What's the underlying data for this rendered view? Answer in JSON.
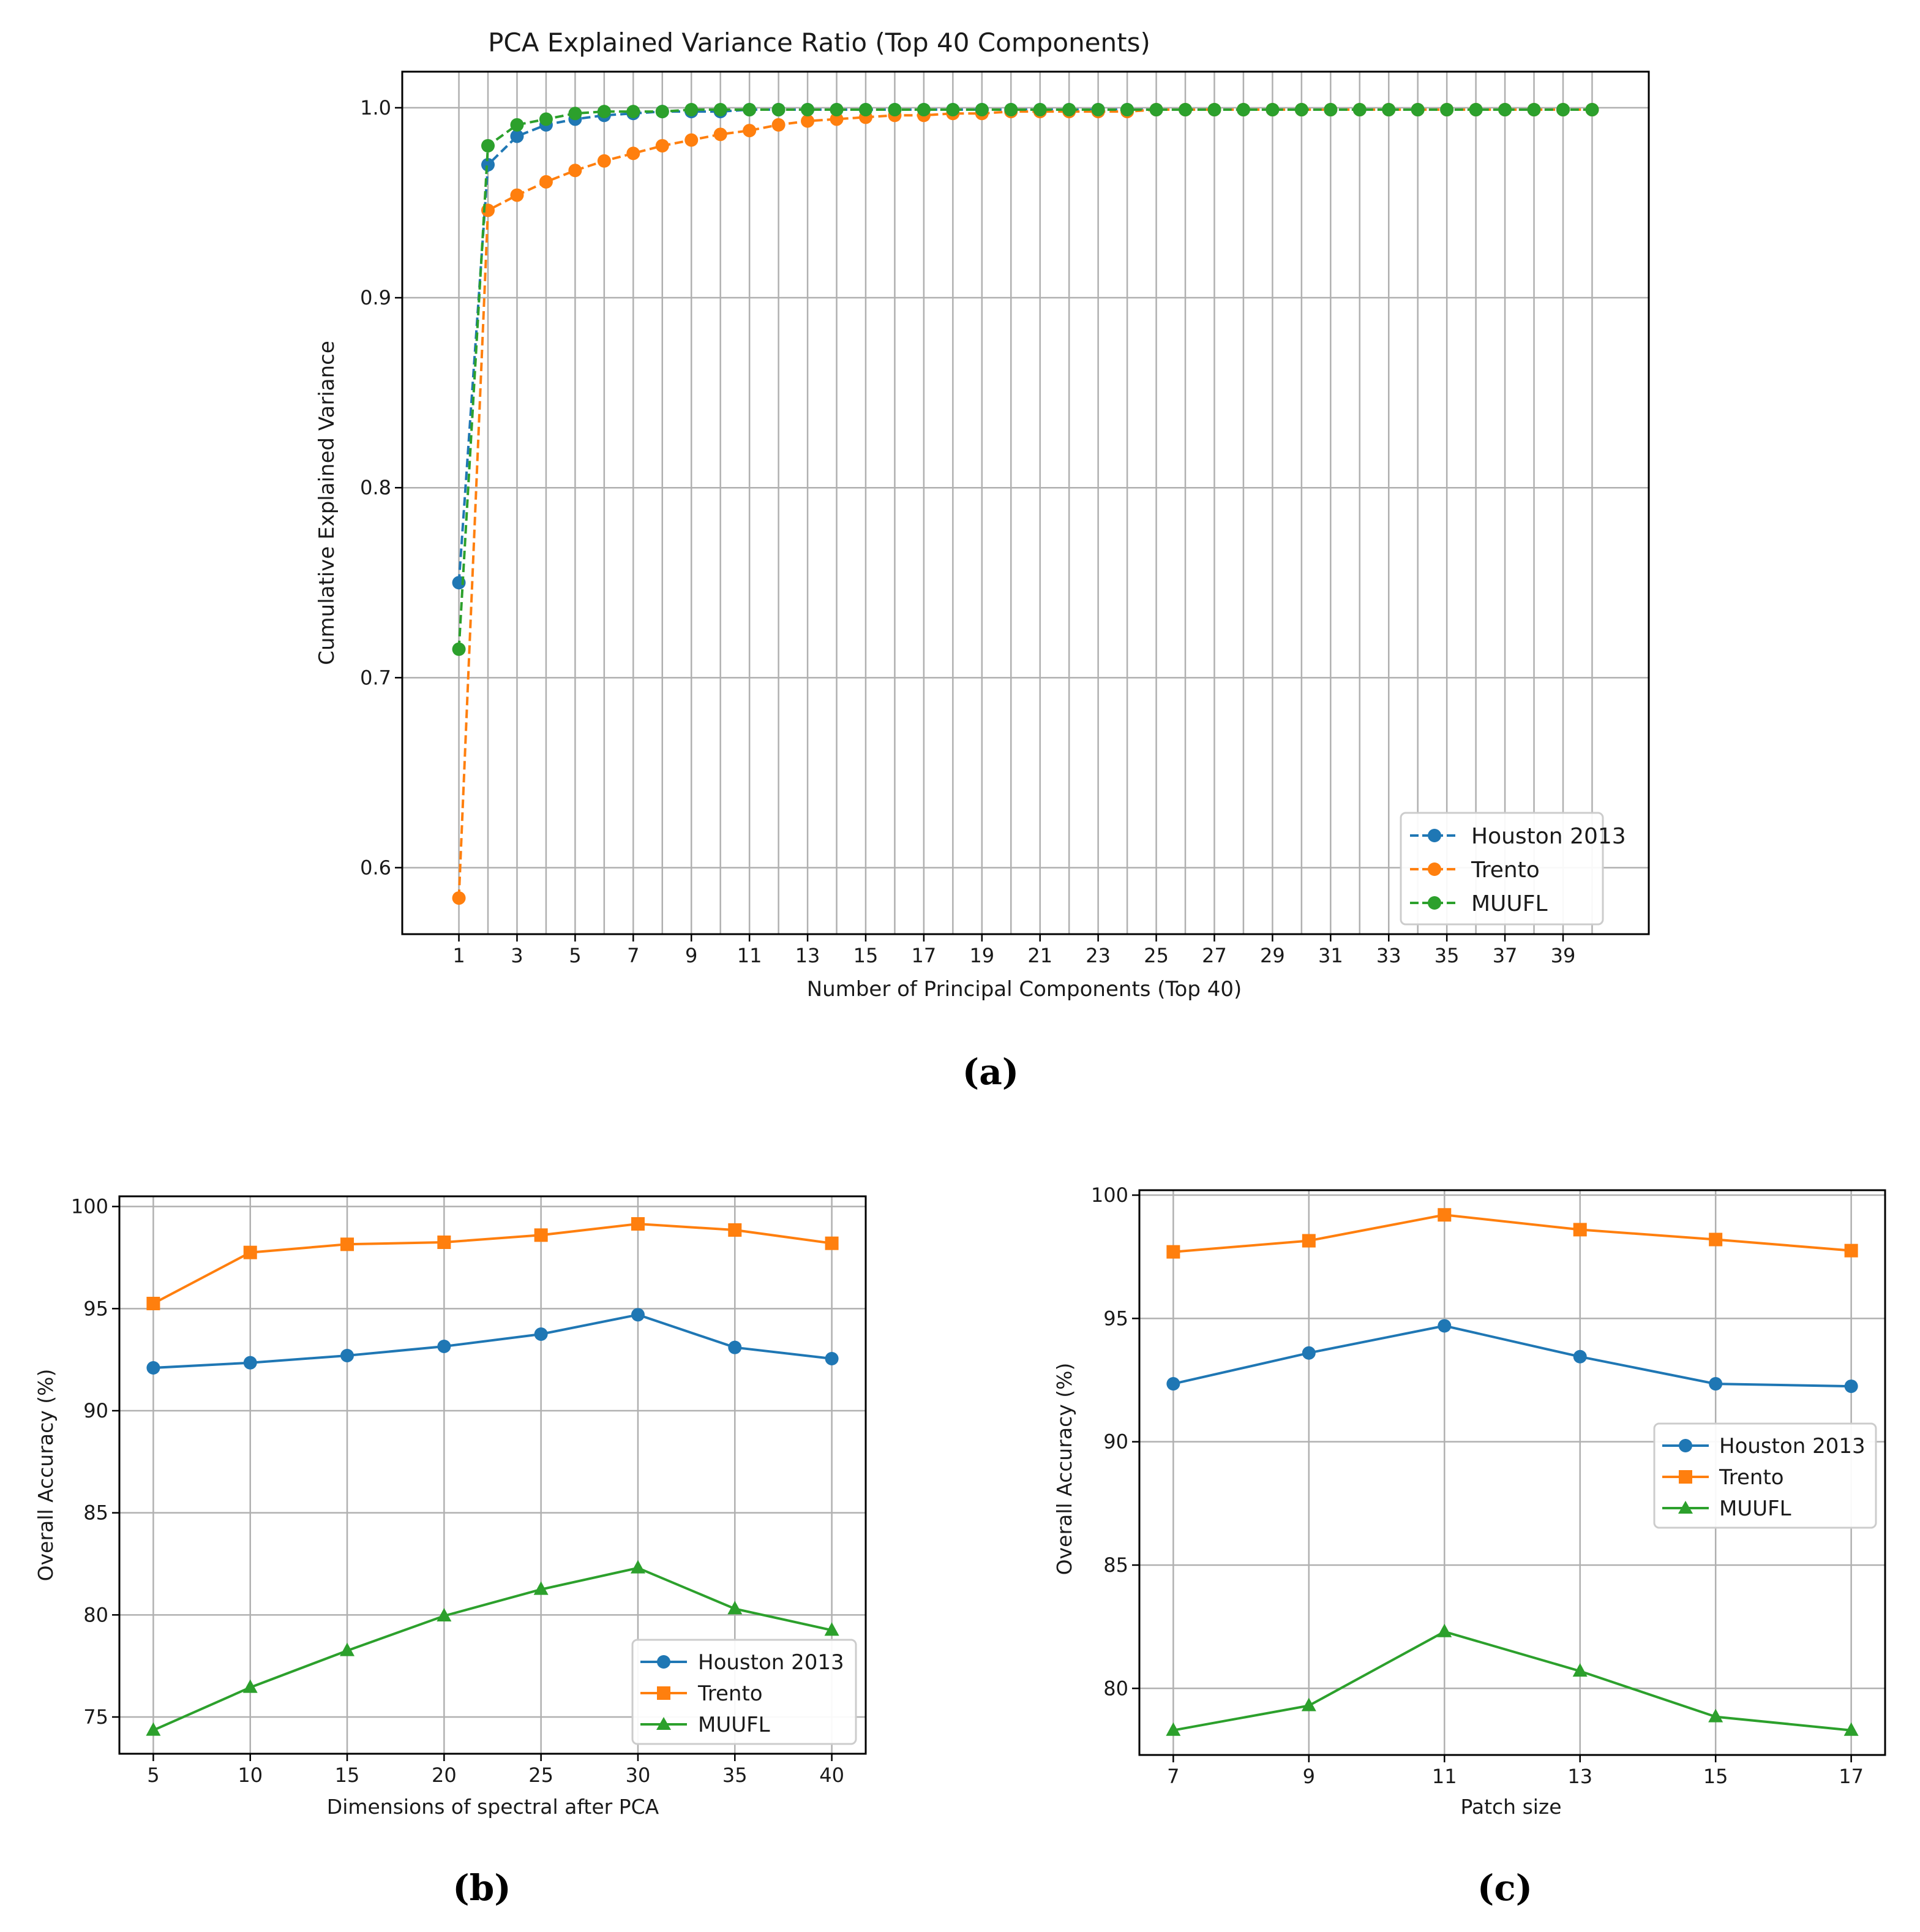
{
  "colors": {
    "houston": "#1f77b4",
    "trento": "#ff7f0e",
    "muufl": "#2ca02c",
    "grid": "#b0b0b0",
    "axis": "#000000"
  },
  "captions": {
    "a": "(a)",
    "b": "(b)",
    "c": "(c)"
  },
  "chart_data": [
    {
      "id": "a",
      "type": "line",
      "title": "PCA Explained Variance Ratio (Top 40 Components)",
      "xlabel": "Number of Principal Components (Top 40)",
      "ylabel": "Cumulative Explained Variance",
      "xlim": [
        -0.95,
        41.95
      ],
      "ylim": [
        0.565,
        1.019
      ],
      "xticks": [
        1,
        3,
        5,
        7,
        9,
        11,
        13,
        15,
        17,
        19,
        21,
        23,
        25,
        27,
        29,
        31,
        33,
        35,
        37,
        39
      ],
      "yticks": [
        0.6,
        0.7,
        0.8,
        0.9,
        1.0
      ],
      "ytick_labels": [
        "0.6",
        "0.7",
        "0.8",
        "0.9",
        "1.0"
      ],
      "x_grid_positions": [
        1,
        2,
        3,
        4,
        5,
        6,
        7,
        8,
        9,
        10,
        11,
        12,
        13,
        14,
        15,
        16,
        17,
        18,
        19,
        20,
        21,
        22,
        23,
        24,
        25,
        26,
        27,
        28,
        29,
        30,
        31,
        32,
        33,
        34,
        35,
        36,
        37,
        38,
        39,
        40
      ],
      "grid": true,
      "legend_position": "lower-right",
      "x": [
        1,
        2,
        3,
        4,
        5,
        6,
        7,
        8,
        9,
        10,
        11,
        12,
        13,
        14,
        15,
        16,
        17,
        18,
        19,
        20,
        21,
        22,
        23,
        24,
        25,
        26,
        27,
        28,
        29,
        30,
        31,
        32,
        33,
        34,
        35,
        36,
        37,
        38,
        39,
        40
      ],
      "series": [
        {
          "name": "Houston 2013",
          "color_key": "houston",
          "marker": "circle",
          "dash": true,
          "values": [
            0.75,
            0.97,
            0.985,
            0.991,
            0.994,
            0.996,
            0.997,
            0.998,
            0.998,
            0.998,
            0.999,
            0.999,
            0.999,
            0.999,
            0.999,
            0.999,
            0.999,
            0.999,
            0.999,
            0.999,
            0.999,
            0.999,
            0.999,
            0.999,
            0.999,
            0.999,
            0.999,
            0.999,
            0.999,
            0.999,
            0.999,
            0.999,
            0.999,
            0.999,
            0.999,
            0.999,
            0.999,
            0.999,
            0.999,
            0.999
          ]
        },
        {
          "name": "Trento",
          "color_key": "trento",
          "marker": "circle",
          "dash": true,
          "values": [
            0.584,
            0.946,
            0.954,
            0.961,
            0.967,
            0.972,
            0.976,
            0.98,
            0.983,
            0.986,
            0.988,
            0.991,
            0.993,
            0.994,
            0.995,
            0.996,
            0.996,
            0.997,
            0.997,
            0.998,
            0.998,
            0.998,
            0.998,
            0.998,
            0.999,
            0.999,
            0.999,
            0.999,
            0.999,
            0.999,
            0.999,
            0.999,
            0.999,
            0.999,
            0.999,
            0.999,
            0.999,
            0.999,
            0.999,
            0.999
          ]
        },
        {
          "name": "MUUFL",
          "color_key": "muufl",
          "marker": "circle",
          "dash": true,
          "values": [
            0.715,
            0.98,
            0.991,
            0.994,
            0.997,
            0.998,
            0.998,
            0.998,
            0.999,
            0.999,
            0.999,
            0.999,
            0.999,
            0.999,
            0.999,
            0.999,
            0.999,
            0.999,
            0.999,
            0.999,
            0.999,
            0.999,
            0.999,
            0.999,
            0.999,
            0.999,
            0.999,
            0.999,
            0.999,
            0.999,
            0.999,
            0.999,
            0.999,
            0.999,
            0.999,
            0.999,
            0.999,
            0.999,
            0.999,
            0.999
          ]
        }
      ]
    },
    {
      "id": "b",
      "type": "line",
      "title": "",
      "xlabel": "Dimensions of spectral after PCA",
      "ylabel": "Overall Accuracy (%)",
      "xlim": [
        3.25,
        41.75
      ],
      "ylim": [
        73.2,
        100.5
      ],
      "xticks": [
        5,
        10,
        15,
        20,
        25,
        30,
        35,
        40
      ],
      "yticks": [
        75,
        80,
        85,
        90,
        95,
        100
      ],
      "ytick_labels": [
        "75",
        "80",
        "85",
        "90",
        "95",
        "100"
      ],
      "grid": true,
      "legend_position": "lower-right",
      "x": [
        5,
        10,
        15,
        20,
        25,
        30,
        35,
        40
      ],
      "series": [
        {
          "name": "Houston 2013",
          "color_key": "houston",
          "marker": "circle",
          "dash": false,
          "values": [
            92.1,
            92.35,
            92.7,
            93.15,
            93.75,
            94.7,
            93.1,
            92.55
          ]
        },
        {
          "name": "Trento",
          "color_key": "trento",
          "marker": "square",
          "dash": false,
          "values": [
            95.25,
            97.75,
            98.15,
            98.25,
            98.6,
            99.15,
            98.85,
            98.2
          ]
        },
        {
          "name": "MUUFL",
          "color_key": "muufl",
          "marker": "triangle",
          "dash": false,
          "values": [
            74.35,
            76.45,
            78.25,
            79.95,
            81.25,
            82.3,
            80.3,
            79.25
          ]
        }
      ]
    },
    {
      "id": "c",
      "type": "line",
      "title": "",
      "xlabel": "Patch size",
      "ylabel": "Overall Accuracy (%)",
      "xlim": [
        6.5,
        17.5
      ],
      "ylim": [
        77.3,
        100.2
      ],
      "xticks": [
        7,
        9,
        11,
        13,
        15,
        17
      ],
      "yticks": [
        80,
        85,
        90,
        95,
        100
      ],
      "ytick_labels": [
        "80",
        "85",
        "90",
        "95",
        "100"
      ],
      "grid": true,
      "legend_position": "center-right",
      "x": [
        7,
        9,
        11,
        13,
        15,
        17
      ],
      "series": [
        {
          "name": "Houston 2013",
          "color_key": "houston",
          "marker": "circle",
          "dash": false,
          "values": [
            92.35,
            93.6,
            94.7,
            93.45,
            92.35,
            92.25
          ]
        },
        {
          "name": "Trento",
          "color_key": "trento",
          "marker": "square",
          "dash": false,
          "values": [
            97.7,
            98.15,
            99.2,
            98.6,
            98.2,
            97.75
          ]
        },
        {
          "name": "MUUFL",
          "color_key": "muufl",
          "marker": "triangle",
          "dash": false,
          "values": [
            78.3,
            79.3,
            82.3,
            80.7,
            78.85,
            78.3
          ]
        }
      ]
    }
  ]
}
